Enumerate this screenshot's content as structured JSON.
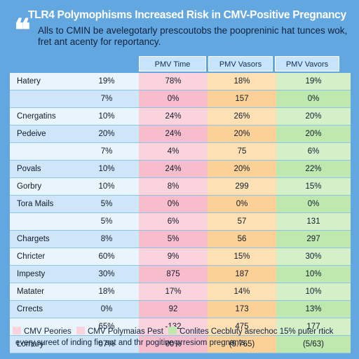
{
  "header": {
    "title": "TLR4 Polymophisms Increased Risk in CMV-Positive Pregnancy",
    "subtitle": "Alls to CMIN be avelegotarly prescoutobs the poopreninic hat tunces wok, fret ant acenty for reportancy."
  },
  "columns": [
    "PMV Time",
    "PMV Vasors",
    "PMV Vavors"
  ],
  "rows": [
    {
      "name": "Hatery",
      "base": "19%",
      "a": "78%",
      "b": "18%",
      "c": "19%"
    },
    {
      "name": "",
      "base": "7%",
      "a": "0%",
      "b": "157",
      "c": "0%"
    },
    {
      "name": "Cnergatins",
      "base": "10%",
      "a": "24%",
      "b": "26%",
      "c": "20%"
    },
    {
      "name": "Pedeive",
      "base": "20%",
      "a": "24%",
      "b": "20%",
      "c": "20%"
    },
    {
      "name": "",
      "base": "7%",
      "a": "4%",
      "b": "75",
      "c": "6%"
    },
    {
      "name": "Povals",
      "base": "10%",
      "a": "24%",
      "b": "20%",
      "c": "22%"
    },
    {
      "name": "Gorbry",
      "base": "10%",
      "a": "8%",
      "b": "299",
      "c": "15%"
    },
    {
      "name": "Tora Mails",
      "base": "5%",
      "a": "0%",
      "b": "0%",
      "c": "0%"
    },
    {
      "name": "",
      "base": "5%",
      "a": "6%",
      "b": "57",
      "c": "131"
    },
    {
      "name": "Chargets",
      "base": "8%",
      "a": "5%",
      "b": "56",
      "c": "297"
    },
    {
      "name": "Chricter",
      "base": "60%",
      "a": "9%",
      "b": "15%",
      "c": "30%"
    },
    {
      "name": "Impesty",
      "base": "30%",
      "a": "875",
      "b": "187",
      "c": "10%"
    },
    {
      "name": "Matater",
      "base": "18%",
      "a": "17%",
      "b": "14%",
      "c": "10%"
    },
    {
      "name": "Crrects",
      "base": "0%",
      "a": "92",
      "b": "173",
      "c": "13%"
    },
    {
      "name": "",
      "base": "65%",
      "a": "-132",
      "b": "475",
      "c": "177"
    },
    {
      "name": "Lomary",
      "base": "07%",
      "a": "00%",
      "b": "(5.765)",
      "c": "(5/63)"
    }
  ],
  "legend": {
    "items": [
      {
        "label": "CMV Peories",
        "color": "#fbd3dd"
      },
      {
        "label": "CMV Polymaias Pest",
        "color": "#bfe8ae"
      },
      {
        "label": "Conlites Cecbluty asrechoc 15% puter rtick",
        "color": ""
      }
    ],
    "note": "every.sureet of inding fie aot and thr pogitive prresiom pregnants."
  },
  "colors": {
    "background": "#62a7df",
    "col_a": "#fbd3dd",
    "col_b": "#fde0b4",
    "col_c": "#d4f0c8"
  }
}
